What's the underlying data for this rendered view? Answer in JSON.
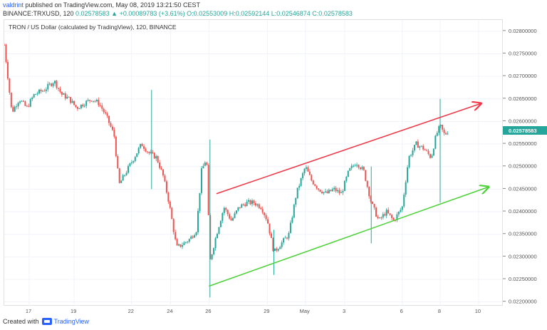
{
  "header": {
    "user": "valdrint",
    "published": "published on TradingView.com, May 08, 2019 13:21:50 CEST",
    "symbol_line": "BINANCE:TRXUSD, 120",
    "last": "0.02578583",
    "change": "+0.00089783 (+3.61%)",
    "ohlc": "O:0.02553009 H:0.02592144 L:0.02546874 C:0.02578583"
  },
  "legend": "TRON / US Dollar (calculated by TradingView), 120, BINANCE",
  "footer": {
    "created": "Created with",
    "brand": "TradingView"
  },
  "colors": {
    "up": "#26a69a",
    "down": "#ef5350",
    "resistance": "#f23645",
    "support": "#4cd137",
    "price_tag": "#26a69a"
  },
  "chart_data": {
    "type": "candlestick",
    "y_ticks": [
      "0.02800000",
      "0.02750000",
      "0.02700000",
      "0.02650000",
      "0.02600000",
      "0.02550000",
      "0.02500000",
      "0.02450000",
      "0.02400000",
      "0.02350000",
      "0.02300000",
      "0.02250000",
      "0.02200000"
    ],
    "ylim": [
      0.0219,
      0.02825
    ],
    "x_ticks": [
      {
        "label": "17",
        "x": 0.05
      },
      {
        "label": "19",
        "x": 0.14
      },
      {
        "label": "22",
        "x": 0.255
      },
      {
        "label": "24",
        "x": 0.333
      },
      {
        "label": "26",
        "x": 0.41
      },
      {
        "label": "29",
        "x": 0.527
      },
      {
        "label": "May",
        "x": 0.603
      },
      {
        "label": "3",
        "x": 0.682
      },
      {
        "label": "6",
        "x": 0.797
      },
      {
        "label": "8",
        "x": 0.873
      },
      {
        "label": "10",
        "x": 0.95
      }
    ],
    "last_price": "0.02578583",
    "last_price_value": 0.02578583,
    "path": [
      [
        0.0,
        0.0277
      ],
      [
        0.015,
        0.0262
      ],
      [
        0.03,
        0.0265
      ],
      [
        0.045,
        0.0263
      ],
      [
        0.06,
        0.0266
      ],
      [
        0.08,
        0.0267
      ],
      [
        0.1,
        0.0269
      ],
      [
        0.115,
        0.0266
      ],
      [
        0.13,
        0.0265
      ],
      [
        0.145,
        0.0263
      ],
      [
        0.16,
        0.0264
      ],
      [
        0.175,
        0.0265
      ],
      [
        0.19,
        0.0264
      ],
      [
        0.205,
        0.0261
      ],
      [
        0.22,
        0.0257
      ],
      [
        0.23,
        0.0246
      ],
      [
        0.245,
        0.0249
      ],
      [
        0.26,
        0.0252
      ],
      [
        0.275,
        0.0255
      ],
      [
        0.29,
        0.0253
      ],
      [
        0.305,
        0.0252
      ],
      [
        0.318,
        0.0248
      ],
      [
        0.33,
        0.0242
      ],
      [
        0.345,
        0.0232
      ],
      [
        0.36,
        0.0233
      ],
      [
        0.372,
        0.0234
      ],
      [
        0.385,
        0.0236
      ],
      [
        0.395,
        0.0249
      ],
      [
        0.405,
        0.0252
      ],
      [
        0.412,
        0.0229
      ],
      [
        0.425,
        0.0235
      ],
      [
        0.44,
        0.0241
      ],
      [
        0.455,
        0.0238
      ],
      [
        0.47,
        0.0241
      ],
      [
        0.485,
        0.0242
      ],
      [
        0.5,
        0.0242
      ],
      [
        0.515,
        0.0241
      ],
      [
        0.527,
        0.0238
      ],
      [
        0.54,
        0.0231
      ],
      [
        0.555,
        0.0233
      ],
      [
        0.57,
        0.0235
      ],
      [
        0.585,
        0.0244
      ],
      [
        0.603,
        0.025
      ],
      [
        0.615,
        0.0247
      ],
      [
        0.63,
        0.0245
      ],
      [
        0.645,
        0.0244
      ],
      [
        0.66,
        0.0245
      ],
      [
        0.675,
        0.0244
      ],
      [
        0.69,
        0.0249
      ],
      [
        0.705,
        0.0251
      ],
      [
        0.72,
        0.0249
      ],
      [
        0.735,
        0.0242
      ],
      [
        0.75,
        0.0238
      ],
      [
        0.765,
        0.024
      ],
      [
        0.78,
        0.0238
      ],
      [
        0.797,
        0.0241
      ],
      [
        0.81,
        0.0252
      ],
      [
        0.825,
        0.0255
      ],
      [
        0.84,
        0.0254
      ],
      [
        0.855,
        0.0252
      ],
      [
        0.865,
        0.0257
      ],
      [
        0.873,
        0.0259
      ],
      [
        0.882,
        0.0257
      ],
      [
        0.888,
        0.02578
      ]
    ],
    "wicks": [
      {
        "x": 0.295,
        "high": 0.0267,
        "low": 0.0245
      },
      {
        "x": 0.412,
        "high": 0.0256,
        "low": 0.0221
      },
      {
        "x": 0.54,
        "high": 0.0236,
        "low": 0.0226
      },
      {
        "x": 0.735,
        "high": 0.025,
        "low": 0.0233
      },
      {
        "x": 0.873,
        "high": 0.0265,
        "low": 0.0242
      }
    ],
    "trendlines": [
      {
        "name": "resistance",
        "color": "#f23645",
        "from": [
          0.425,
          0.0244
        ],
        "to": [
          0.955,
          0.0264
        ],
        "arrow": true
      },
      {
        "name": "support",
        "color": "#4cd137",
        "from": [
          0.41,
          0.02235
        ],
        "to": [
          0.97,
          0.02455
        ],
        "arrow": true
      }
    ]
  }
}
